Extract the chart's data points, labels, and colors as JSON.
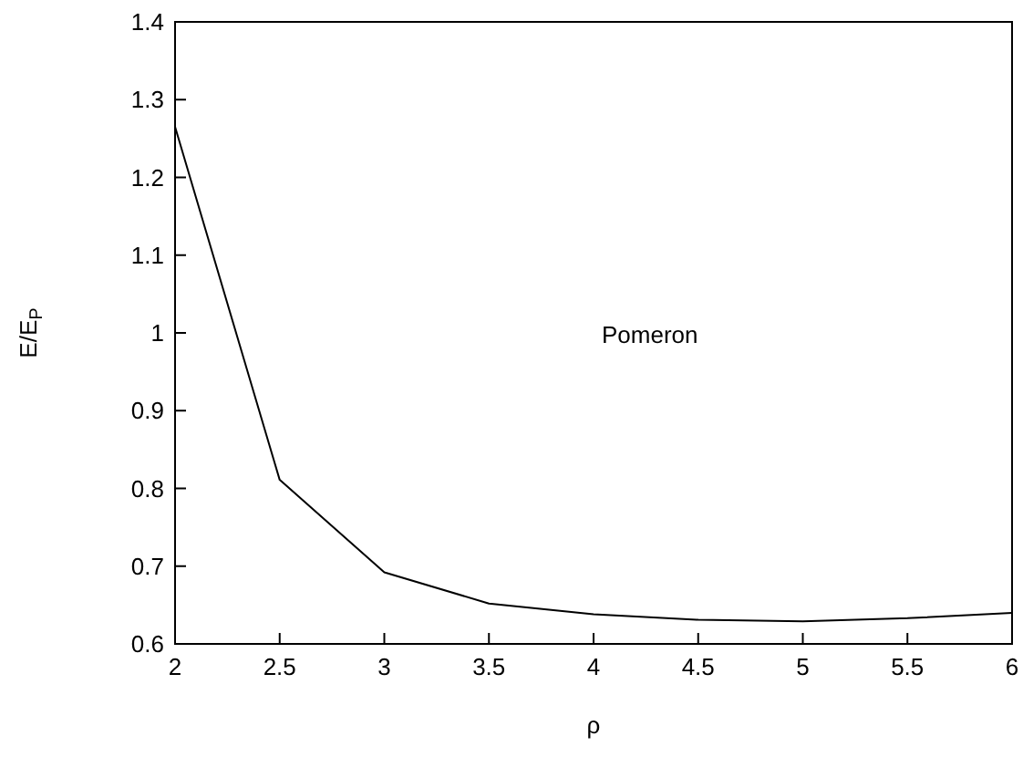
{
  "chart_data": {
    "type": "line",
    "xlabel": "ρ",
    "ylabel": "E/E$_{P}$",
    "x": [
      2,
      2.5,
      3,
      3.5,
      4,
      4.5,
      5,
      5.5,
      6
    ],
    "series": [
      {
        "color": "#000000",
        "values": [
          1.265,
          0.811,
          0.692,
          0.652,
          0.638,
          0.631,
          0.629,
          0.633,
          0.64
        ]
      }
    ],
    "xlim": [
      2,
      6
    ],
    "xticks": [
      2,
      2.5,
      3,
      3.5,
      4,
      4.5,
      5,
      5.5,
      6
    ],
    "ylim": [
      0.6,
      1.4
    ],
    "yticks": [
      0.6,
      0.7,
      0.8,
      0.9,
      1,
      1.1,
      1.2,
      1.3,
      1.4
    ],
    "annotations": [
      "Pomeron"
    ],
    "grid": false,
    "marker": "none",
    "line_style": "solid"
  }
}
